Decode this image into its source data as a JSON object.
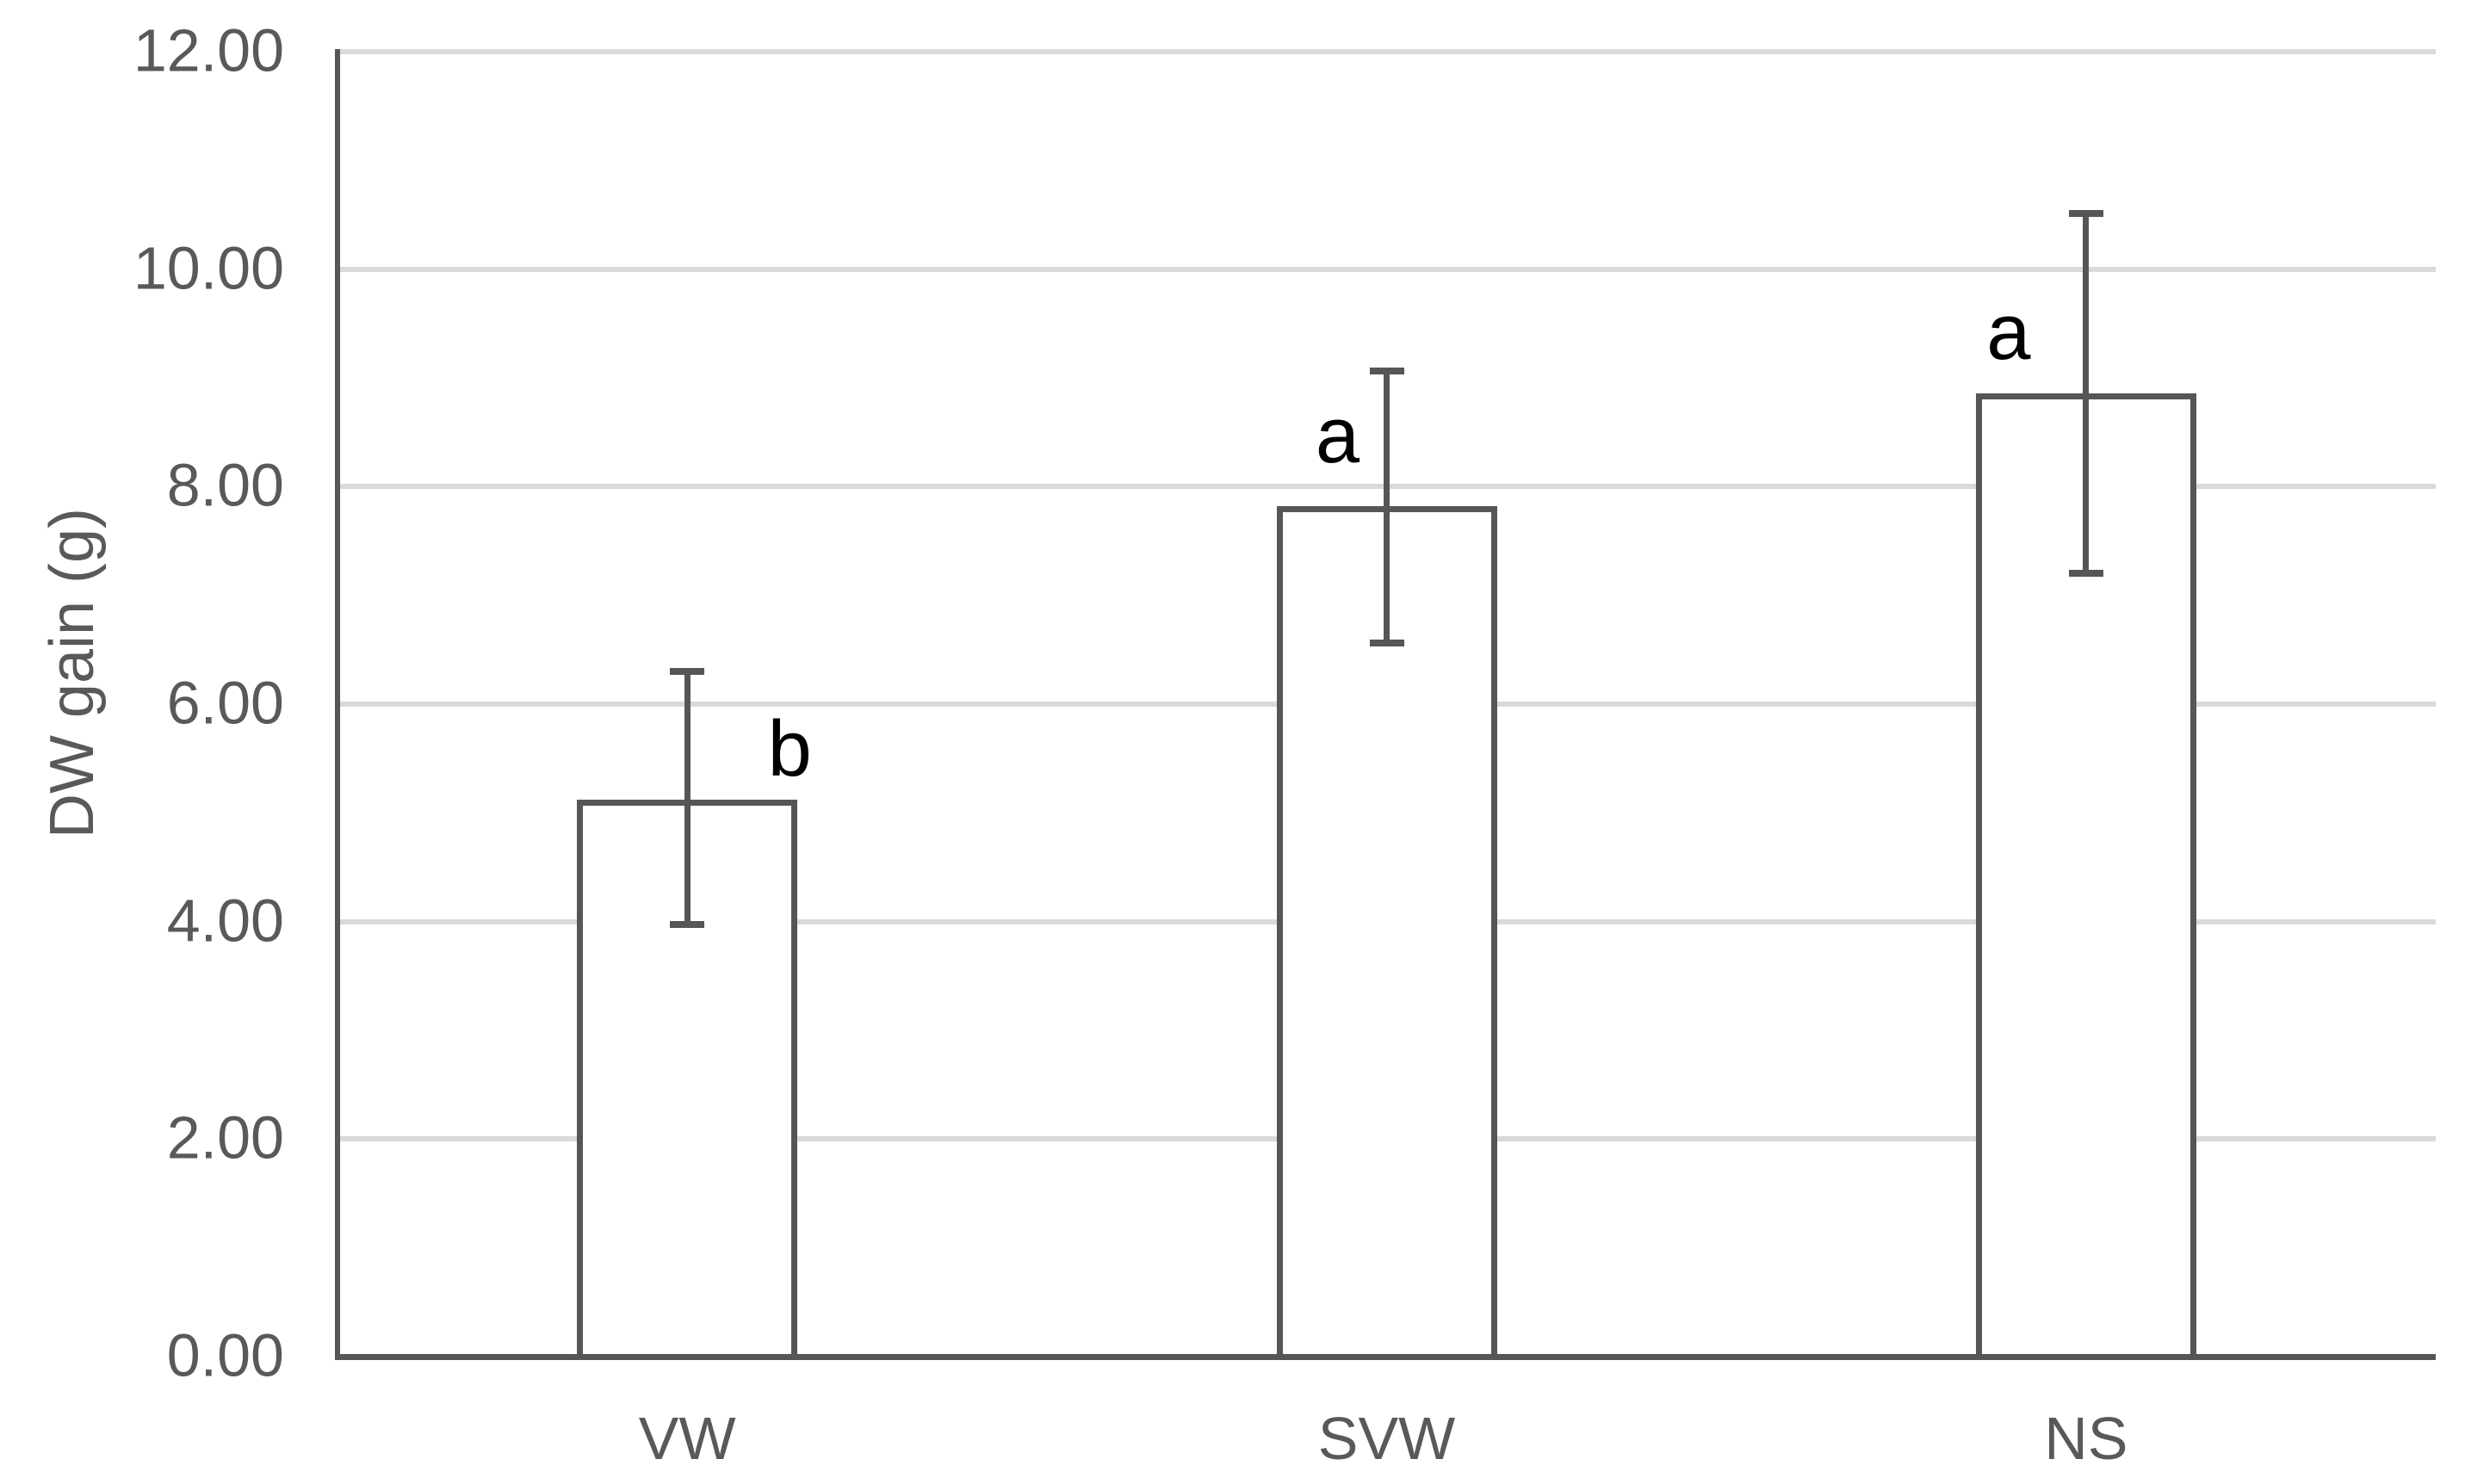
{
  "chart_data": {
    "type": "bar",
    "title": "",
    "xlabel": "",
    "ylabel": "DW gain (g)",
    "categories": [
      "VW",
      "SVW",
      "NS"
    ],
    "values": [
      5.12,
      7.82,
      8.86
    ],
    "error_bars": {
      "upper": [
        6.3,
        9.06,
        10.51
      ],
      "lower": [
        3.97,
        6.56,
        7.2
      ]
    },
    "significance_letters": [
      "b",
      "a",
      "a"
    ],
    "ylim": [
      0,
      12
    ],
    "ytick_step": 2,
    "ytick_labels": [
      "0.00",
      "2.00",
      "4.00",
      "6.00",
      "8.00",
      "10.00",
      "12.00"
    ],
    "grid": "horizontal",
    "legend": "none",
    "colors": {
      "bar_fill": "#ffffff",
      "bar_border": "#565656",
      "error_bar": "#565656",
      "axis_line": "#565656",
      "gridline": "#d9d9d9",
      "tick_label": "#595959",
      "axis_title": "#595959",
      "category_label": "#595959",
      "letter": "#000000"
    }
  }
}
